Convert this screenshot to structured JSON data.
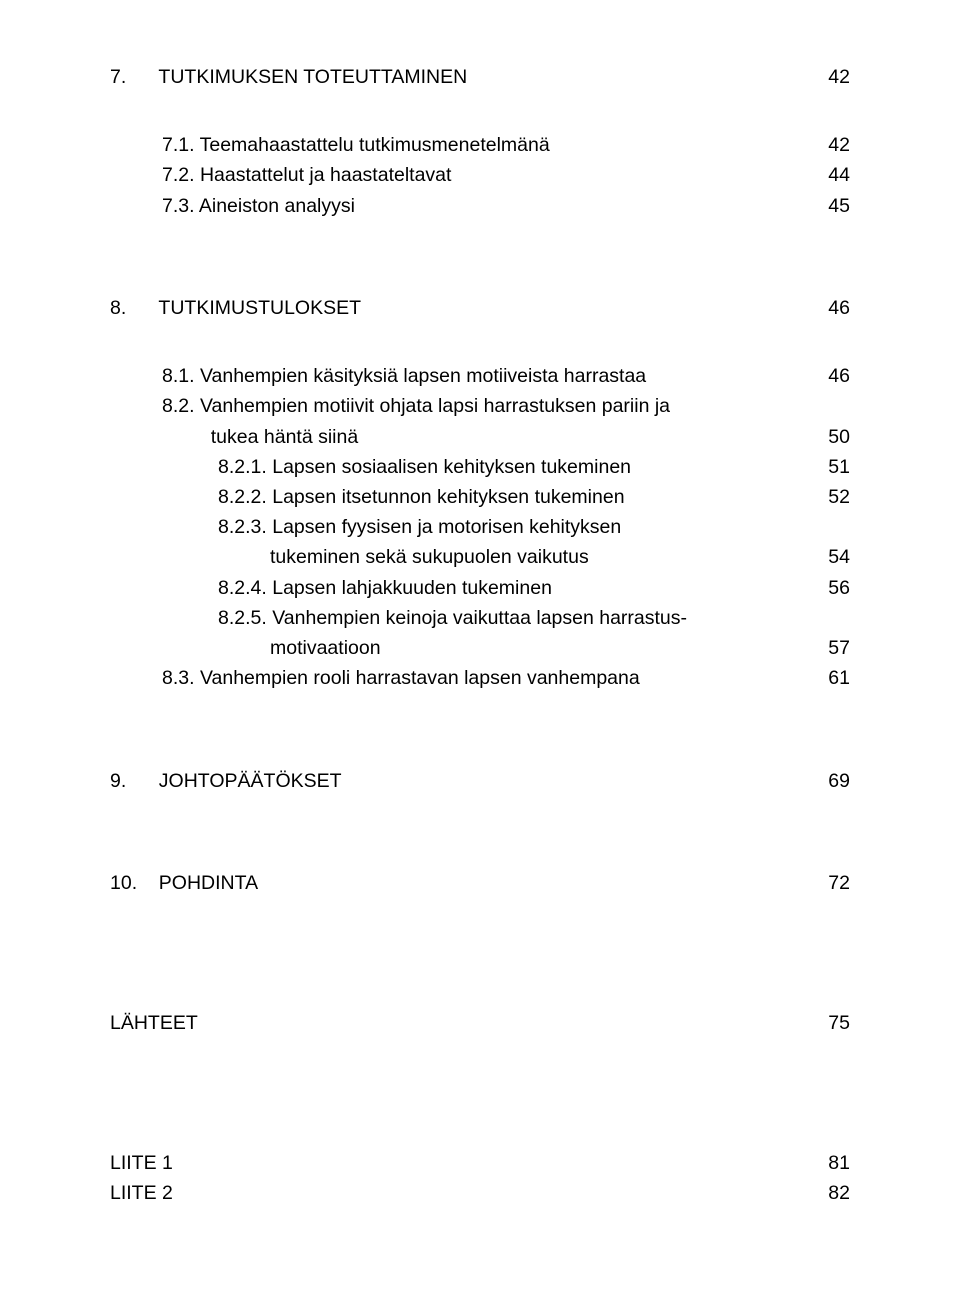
{
  "toc": {
    "s7": {
      "num": "7.",
      "title": "TUTKIMUKSEN TOTEUTTAMINEN",
      "page": "42",
      "items": [
        {
          "num": "7.1.",
          "title": "Teemahaastattelu tutkimusmenetelmänä",
          "page": "42"
        },
        {
          "num": "7.2.",
          "title": "Haastattelut ja haastateltavat",
          "page": "44"
        },
        {
          "num": "7.3.",
          "title": "Aineiston analyysi",
          "page": "45"
        }
      ]
    },
    "s8": {
      "num": "8.",
      "title": "TUTKIMUSTULOKSET",
      "page": "46",
      "items": [
        {
          "num": "8.1.",
          "title": "Vanhempien käsityksiä lapsen motiiveista harrastaa",
          "page": "46"
        },
        {
          "num": "8.2.",
          "title_l1": "Vanhempien motiivit ohjata lapsi harrastuksen pariin ja",
          "title_l2": "tukea häntä siinä",
          "page": "50",
          "sub": [
            {
              "num": "8.2.1.",
              "title": "Lapsen sosiaalisen kehityksen tukeminen",
              "page": "51"
            },
            {
              "num": "8.2.2.",
              "title": "Lapsen itsetunnon kehityksen tukeminen",
              "page": "52"
            },
            {
              "num": "8.2.3.",
              "title_l1": "Lapsen fyysisen ja motorisen kehityksen",
              "title_l2": "tukeminen sekä sukupuolen vaikutus",
              "page": "54"
            },
            {
              "num": "8.2.4.",
              "title": "Lapsen lahjakkuuden tukeminen",
              "page": "56"
            },
            {
              "num": "8.2.5.",
              "title_l1": "Vanhempien keinoja vaikuttaa lapsen harrastus-",
              "title_l2": "motivaatioon",
              "page": "57"
            }
          ]
        },
        {
          "num": "8.3.",
          "title": "Vanhempien rooli harrastavan lapsen vanhempana",
          "page": "61"
        }
      ]
    },
    "s9": {
      "num": "9.",
      "title": "JOHTOPÄÄTÖKSET",
      "page": "69"
    },
    "s10": {
      "num": "10.",
      "title": "POHDINTA",
      "page": "72"
    },
    "back": [
      {
        "title": "LÄHTEET",
        "page": "75"
      },
      {
        "title": "LIITE 1",
        "page": "81"
      },
      {
        "title": "LIITE 2",
        "page": "82"
      }
    ]
  }
}
